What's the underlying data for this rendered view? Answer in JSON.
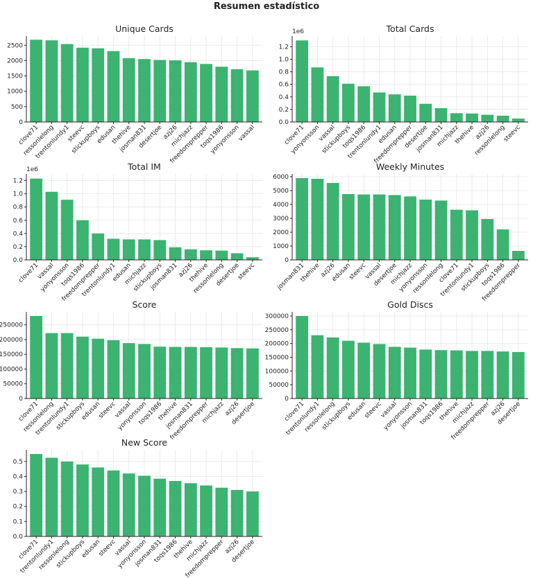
{
  "suptitle": "Resumen estadístico",
  "bar_color": "#3cb371",
  "chart_data": [
    {
      "type": "bar",
      "title": "Unique Cards",
      "categories": [
        "clove71",
        "ressonlelong",
        "trentonlundy1",
        "steevc",
        "stickupboys",
        "edusan",
        "thehive",
        "josman831",
        "desertjoe",
        "azj26",
        "michjazz",
        "freedomprepper",
        "toqs1986",
        "yonyonsson",
        "vassal"
      ],
      "values": [
        2680,
        2660,
        2540,
        2420,
        2400,
        2310,
        2080,
        2050,
        2020,
        2010,
        1950,
        1890,
        1800,
        1720,
        1680
      ],
      "ylim": [
        0,
        2800
      ],
      "yticks": [
        0,
        500,
        1000,
        1500,
        2000,
        2500
      ],
      "ytick_labels": [
        "0",
        "500",
        "1000",
        "1500",
        "2000",
        "2500"
      ],
      "scale_label": "",
      "grid": true
    },
    {
      "type": "bar",
      "title": "Total Cards",
      "categories": [
        "clove71",
        "yonyonsson",
        "vassal",
        "stickupboys",
        "toqs1986",
        "trentonlundy1",
        "edusan",
        "freedomprepper",
        "desertjoe",
        "josman831",
        "michjazz",
        "thehive",
        "azj26",
        "ressonlelong",
        "steevc"
      ],
      "values": [
        1300000,
        870000,
        730000,
        610000,
        570000,
        470000,
        440000,
        420000,
        290000,
        220000,
        140000,
        135000,
        115000,
        100000,
        55000
      ],
      "ylim": [
        0,
        1370000
      ],
      "yticks": [
        0,
        200000,
        400000,
        600000,
        800000,
        1000000,
        1200000
      ],
      "ytick_labels": [
        "0.0",
        "0.2",
        "0.4",
        "0.6",
        "0.8",
        "1.0",
        "1.2"
      ],
      "scale_label": "1e6",
      "grid": true
    },
    {
      "type": "bar",
      "title": "Total IM",
      "categories": [
        "clove71",
        "vassal",
        "yonyonsson",
        "toqs1986",
        "freedomprepper",
        "trentonlundy1",
        "edusan",
        "michjazz",
        "stickupboys",
        "josman831",
        "azj26",
        "thehive",
        "ressonlelong",
        "desertjoe",
        "steevc"
      ],
      "values": [
        1230000,
        1030000,
        910000,
        600000,
        400000,
        320000,
        310000,
        310000,
        300000,
        190000,
        160000,
        145000,
        140000,
        100000,
        40000
      ],
      "ylim": [
        0,
        1300000
      ],
      "yticks": [
        0,
        200000,
        400000,
        600000,
        800000,
        1000000,
        1200000
      ],
      "ytick_labels": [
        "0.0",
        "0.2",
        "0.4",
        "0.6",
        "0.8",
        "1.0",
        "1.2"
      ],
      "scale_label": "1e6",
      "grid": true
    },
    {
      "type": "bar",
      "title": "Weekly Minutes",
      "categories": [
        "josman831",
        "thehive",
        "azj26",
        "edusan",
        "steevc",
        "vassal",
        "desertjoe",
        "michjazz",
        "yonyonsson",
        "ressonlelong",
        "clove71",
        "trentonlundy1",
        "stickupboys",
        "toqs1986",
        "freedomprepper"
      ],
      "values": [
        5900,
        5850,
        5550,
        4750,
        4720,
        4720,
        4680,
        4580,
        4350,
        4280,
        3620,
        3580,
        2950,
        2200,
        650
      ],
      "ylim": [
        0,
        6200
      ],
      "yticks": [
        0,
        1000,
        2000,
        3000,
        4000,
        5000,
        6000
      ],
      "ytick_labels": [
        "0",
        "1000",
        "2000",
        "3000",
        "4000",
        "5000",
        "6000"
      ],
      "scale_label": "",
      "grid": true
    },
    {
      "type": "bar",
      "title": "Score",
      "categories": [
        "clove71",
        "ressonlelong",
        "trentonlundy1",
        "stickupboys",
        "edusan",
        "steevc",
        "vassal",
        "yonyonsson",
        "toqs1986",
        "thehive",
        "josman831",
        "freedomprepper",
        "michjazz",
        "azj26",
        "desertjoe"
      ],
      "values": [
        280000,
        222000,
        222000,
        210000,
        203000,
        198000,
        188000,
        185000,
        176000,
        175000,
        175000,
        174000,
        173000,
        171000,
        170000
      ],
      "ylim": [
        0,
        294000
      ],
      "yticks": [
        0,
        50000,
        100000,
        150000,
        200000,
        250000
      ],
      "ytick_labels": [
        "0",
        "50000",
        "100000",
        "150000",
        "200000",
        "250000"
      ],
      "scale_label": "",
      "grid": true
    },
    {
      "type": "bar",
      "title": "Gold Discs",
      "categories": [
        "clove71",
        "trentonlundy1",
        "ressonlelong",
        "stickupboys",
        "edusan",
        "steevc",
        "vassal",
        "yonyonsson",
        "josman831",
        "toqs1986",
        "thehive",
        "michjazz",
        "freedomprepper",
        "azj26",
        "desertjoe"
      ],
      "values": [
        300000,
        230000,
        222000,
        210000,
        203000,
        198000,
        188000,
        185000,
        178000,
        176000,
        175000,
        173000,
        173000,
        171000,
        169000
      ],
      "ylim": [
        0,
        315000
      ],
      "yticks": [
        0,
        50000,
        100000,
        150000,
        200000,
        250000,
        300000
      ],
      "ytick_labels": [
        "0",
        "50000",
        "100000",
        "150000",
        "200000",
        "250000",
        "300000"
      ],
      "scale_label": "",
      "grid": true
    },
    {
      "type": "bar",
      "title": "New Score",
      "categories": [
        "clove71",
        "trentonlundy1",
        "ressonlelong",
        "stickupboys",
        "edusan",
        "steevc",
        "vassal",
        "yonyonsson",
        "josman831",
        "toqs1986",
        "thehive",
        "michjazz",
        "freedomprepper",
        "azj26",
        "desertjoe"
      ],
      "values": [
        0.55,
        0.525,
        0.5,
        0.48,
        0.46,
        0.44,
        0.42,
        0.405,
        0.385,
        0.37,
        0.355,
        0.34,
        0.325,
        0.31,
        0.3
      ],
      "ylim": [
        0,
        0.578
      ],
      "yticks": [
        0,
        0.1,
        0.2,
        0.3,
        0.4,
        0.5
      ],
      "ytick_labels": [
        "0.0",
        "0.1",
        "0.2",
        "0.3",
        "0.4",
        "0.5"
      ],
      "scale_label": "",
      "grid": true
    }
  ]
}
